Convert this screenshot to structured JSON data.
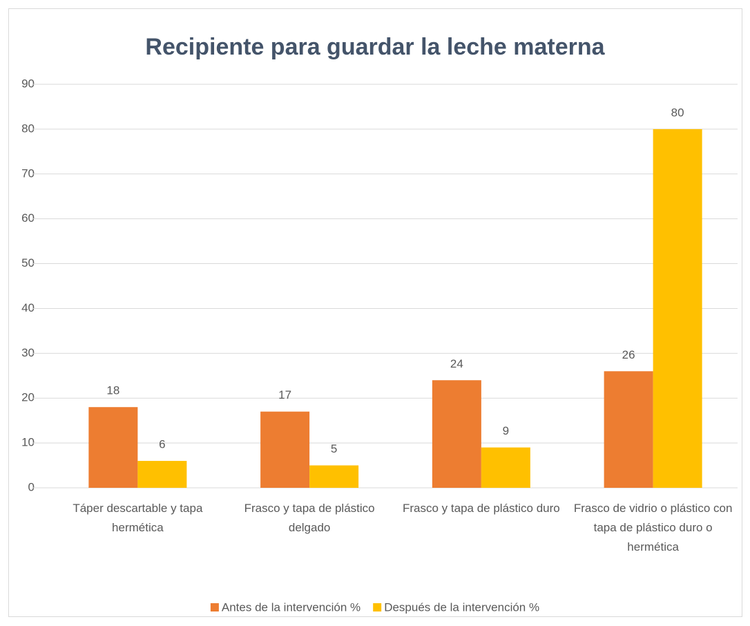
{
  "chart_data": {
    "type": "bar",
    "title": "Recipiente para guardar la leche materna",
    "categories": [
      "Táper descartable y tapa hermética",
      "Frasco y tapa de plástico delgado",
      "Frasco y tapa de plástico duro",
      "Frasco de vidrio o plástico con tapa de plástico duro o hermética"
    ],
    "series": [
      {
        "name": "Antes de la intervención %",
        "color": "#ed7d31",
        "values": [
          18,
          17,
          24,
          26
        ]
      },
      {
        "name": "Después de la intervención %",
        "color": "#ffc000",
        "values": [
          6,
          5,
          9,
          80
        ]
      }
    ],
    "ylim": [
      0,
      90
    ],
    "yticks": [
      0,
      10,
      20,
      30,
      40,
      50,
      60,
      70,
      80,
      90
    ],
    "grid": true,
    "legend": "bottom"
  }
}
